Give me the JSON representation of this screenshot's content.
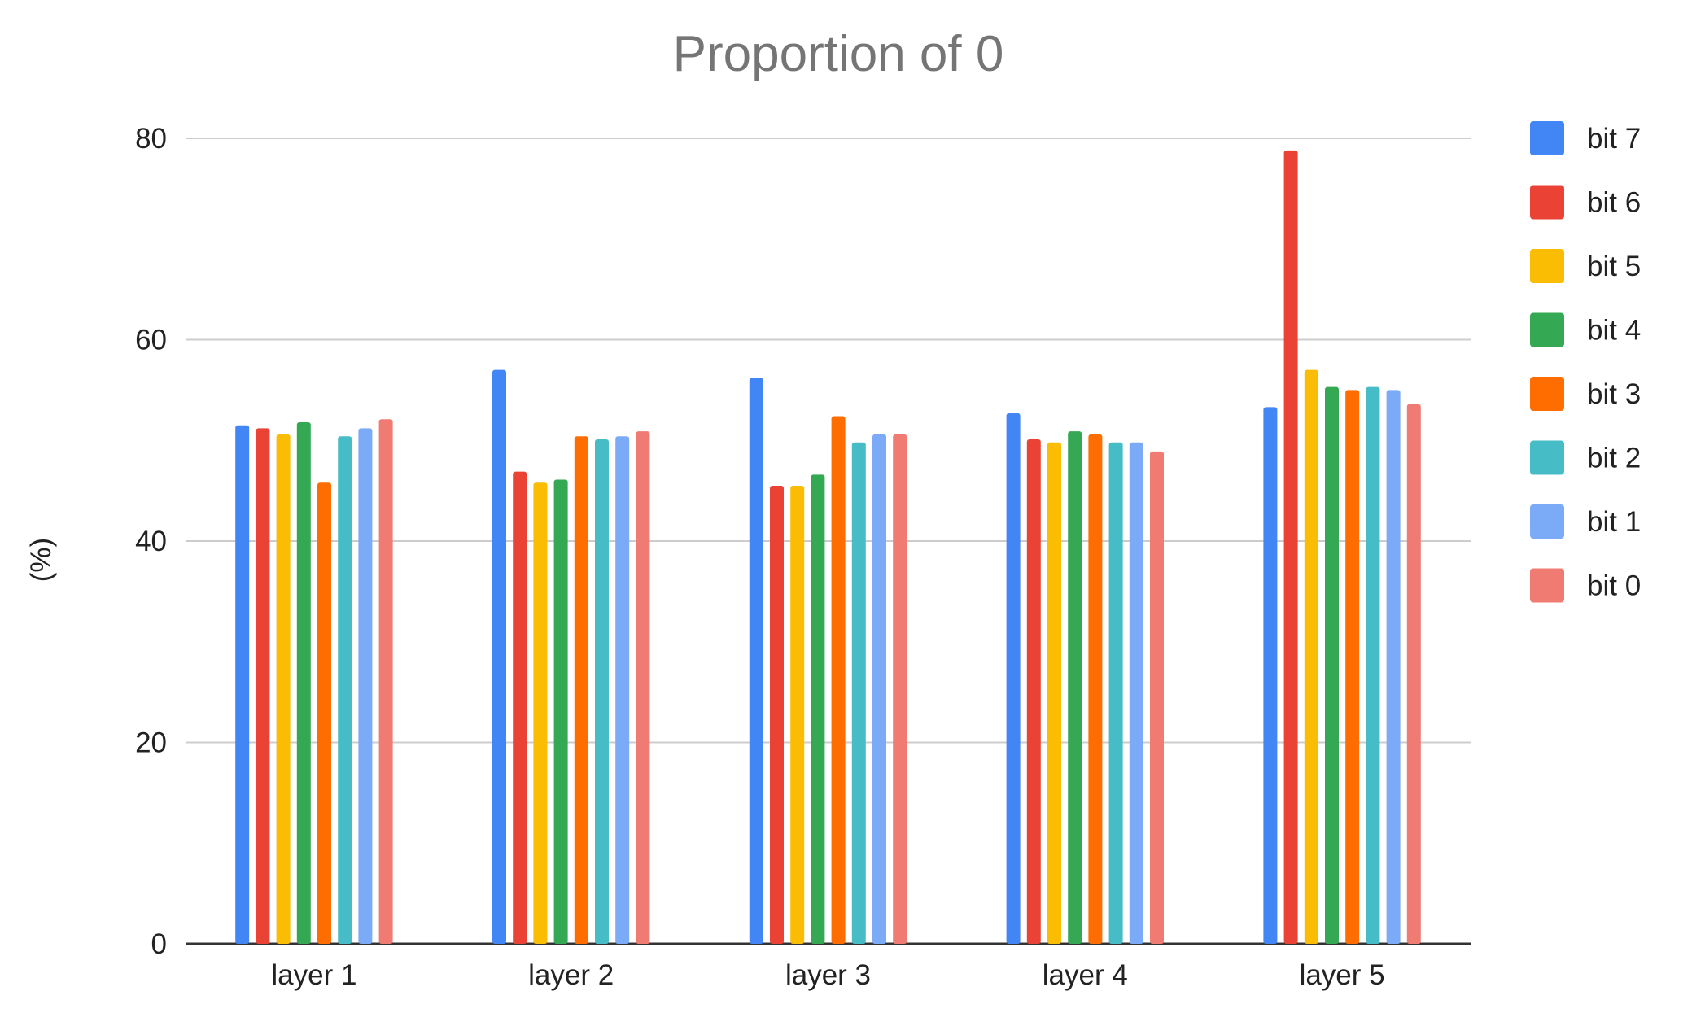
{
  "chart_data": {
    "type": "bar",
    "title": "Proportion of 0",
    "xlabel": "",
    "ylabel": "(%)",
    "ylim": [
      0,
      80
    ],
    "yticks": [
      "0",
      "20",
      "40",
      "60",
      "80"
    ],
    "grid": true,
    "legend_position": "right",
    "categories": [
      "layer 1",
      "layer 2",
      "layer 3",
      "layer 4",
      "layer 5"
    ],
    "series": [
      {
        "name": "bit 7",
        "color": "#4285F4",
        "values": [
          51.5,
          57.0,
          56.2,
          52.7,
          53.3
        ]
      },
      {
        "name": "bit 6",
        "color": "#EA4335",
        "values": [
          51.2,
          46.9,
          45.5,
          50.1,
          78.8
        ]
      },
      {
        "name": "bit 5",
        "color": "#FBBC04",
        "values": [
          50.6,
          45.8,
          45.5,
          49.8,
          57.0
        ]
      },
      {
        "name": "bit 4",
        "color": "#34A853",
        "values": [
          51.8,
          46.1,
          46.6,
          50.9,
          55.3
        ]
      },
      {
        "name": "bit 3",
        "color": "#FF6D01",
        "values": [
          45.8,
          50.4,
          52.4,
          50.6,
          55.0
        ]
      },
      {
        "name": "bit 2",
        "color": "#46BDC6",
        "values": [
          50.4,
          50.1,
          49.8,
          49.8,
          55.3
        ]
      },
      {
        "name": "bit 1",
        "color": "#7BAAF7",
        "values": [
          51.2,
          50.4,
          50.6,
          49.8,
          55.0
        ]
      },
      {
        "name": "bit 0",
        "color": "#F07B72",
        "values": [
          52.1,
          50.9,
          50.6,
          48.9,
          53.6
        ]
      }
    ]
  }
}
